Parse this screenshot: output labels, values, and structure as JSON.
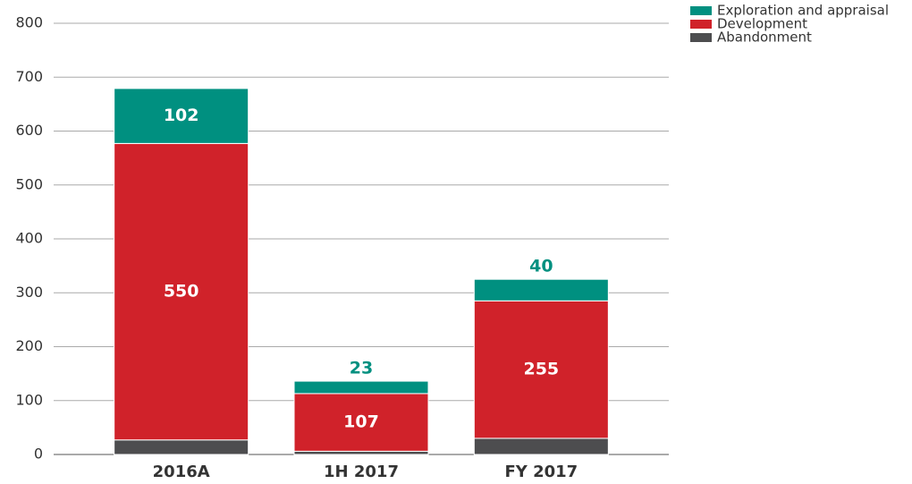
{
  "chart_data": {
    "type": "stacked_bar",
    "categories": [
      "2016A",
      "1H 2017",
      "FY 2017"
    ],
    "series": [
      {
        "name": "Abandonment",
        "color": "#4d4d4f",
        "values": [
          27,
          6,
          30
        ]
      },
      {
        "name": "Development",
        "color": "#d0222a",
        "values": [
          550,
          107,
          255
        ]
      },
      {
        "name": "Exploration and appraisal",
        "color": "#009080",
        "values": [
          102,
          23,
          40
        ]
      }
    ],
    "ylim": [
      0,
      800
    ],
    "yticks": [
      0,
      100,
      200,
      300,
      400,
      500,
      600,
      700,
      800
    ],
    "grid": true
  }
}
